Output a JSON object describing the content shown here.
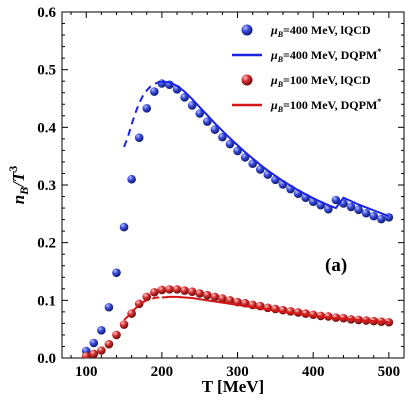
{
  "chart_data": {
    "type": "scatter",
    "xlabel": "T [MeV]",
    "ylabel_main": "n",
    "ylabel_sub": "B",
    "ylabel_rest": "/T",
    "ylabel_sup": "3",
    "annotation": "(a)",
    "xlim": [
      68,
      520
    ],
    "ylim": [
      0,
      0.6
    ],
    "xticks": [
      100,
      200,
      300,
      400,
      500
    ],
    "yticks": [
      0.0,
      0.1,
      0.2,
      0.3,
      0.4,
      0.5,
      0.6
    ],
    "xtick_labels": [
      "100",
      "200",
      "300",
      "400",
      "500"
    ],
    "ytick_labels": [
      "0.0",
      "0.1",
      "0.2",
      "0.3",
      "0.4",
      "0.5",
      "0.6"
    ],
    "legend_position": "top-right",
    "series": [
      {
        "name": "μB=400 MeV, lQCD",
        "legend_pre": "μ",
        "legend_sub": "B",
        "legend_post": "=400 MeV, lQCD",
        "kind": "markers",
        "color": "#2f3fd0",
        "x": [
          100,
          110,
          120,
          130,
          140,
          150,
          160,
          170,
          180,
          190,
          200,
          210,
          220,
          230,
          240,
          250,
          260,
          270,
          280,
          290,
          300,
          310,
          320,
          330,
          340,
          350,
          360,
          370,
          380,
          390,
          400,
          410,
          420,
          430,
          440,
          450,
          460,
          470,
          480,
          490,
          500
        ],
        "y": [
          0.012,
          0.026,
          0.048,
          0.088,
          0.148,
          0.227,
          0.31,
          0.382,
          0.433,
          0.462,
          0.476,
          0.474,
          0.466,
          0.452,
          0.438,
          0.424,
          0.41,
          0.396,
          0.383,
          0.371,
          0.359,
          0.348,
          0.337,
          0.327,
          0.318,
          0.309,
          0.301,
          0.293,
          0.285,
          0.278,
          0.271,
          0.265,
          0.258,
          0.274,
          0.268,
          0.262,
          0.257,
          0.251,
          0.246,
          0.241,
          0.244
        ]
      },
      {
        "name": "μB=400 MeV, DQPM*",
        "legend_pre": "μ",
        "legend_sub": "B",
        "legend_post": "=400 MeV, DQPM",
        "legend_sup": "*",
        "kind": "line",
        "color": "#1a22e6",
        "dashed_x": [
          150,
          155,
          160,
          165,
          170,
          175,
          180,
          185,
          190,
          195,
          200
        ],
        "dashed_y": [
          0.366,
          0.383,
          0.405,
          0.425,
          0.442,
          0.455,
          0.464,
          0.471,
          0.475,
          0.478,
          0.479
        ],
        "x": [
          200,
          210,
          220,
          230,
          240,
          250,
          260,
          270,
          280,
          290,
          300,
          310,
          320,
          330,
          340,
          350,
          360,
          370,
          380,
          390,
          400,
          410,
          420,
          430,
          440,
          450,
          460,
          470,
          480,
          490,
          500
        ],
        "y": [
          0.479,
          0.478,
          0.472,
          0.462,
          0.449,
          0.435,
          0.421,
          0.407,
          0.394,
          0.381,
          0.369,
          0.357,
          0.346,
          0.335,
          0.325,
          0.316,
          0.307,
          0.299,
          0.291,
          0.284,
          0.277,
          0.271,
          0.265,
          0.26,
          0.278,
          0.272,
          0.266,
          0.261,
          0.256,
          0.251,
          0.246
        ]
      },
      {
        "name": "μB=100 MeV, lQCD",
        "legend_pre": "μ",
        "legend_sub": "B",
        "legend_post": "=100 MeV, lQCD",
        "kind": "markers",
        "color": "#d42a2a",
        "x": [
          100,
          110,
          120,
          130,
          140,
          150,
          160,
          170,
          180,
          190,
          200,
          210,
          220,
          230,
          240,
          250,
          260,
          270,
          280,
          290,
          300,
          310,
          320,
          330,
          340,
          350,
          360,
          370,
          380,
          390,
          400,
          410,
          420,
          430,
          440,
          450,
          460,
          470,
          480,
          490,
          500
        ],
        "y": [
          0.003,
          0.007,
          0.013,
          0.024,
          0.04,
          0.058,
          0.077,
          0.094,
          0.106,
          0.114,
          0.118,
          0.119,
          0.119,
          0.117,
          0.115,
          0.112,
          0.109,
          0.106,
          0.103,
          0.1,
          0.097,
          0.095,
          0.092,
          0.09,
          0.087,
          0.085,
          0.083,
          0.081,
          0.079,
          0.077,
          0.075,
          0.073,
          0.072,
          0.07,
          0.069,
          0.067,
          0.066,
          0.065,
          0.064,
          0.063,
          0.062
        ]
      },
      {
        "name": "μB=100 MeV, DQPM*",
        "legend_pre": "μ",
        "legend_sub": "B",
        "legend_post": "=100 MeV, DQPM",
        "legend_sup": "*",
        "kind": "line",
        "color": "#d41616",
        "dashed_x": [
          150,
          155,
          160,
          165,
          170,
          175,
          180,
          185,
          190,
          195,
          200
        ],
        "dashed_y": [
          0.066,
          0.072,
          0.079,
          0.086,
          0.092,
          0.097,
          0.1,
          0.102,
          0.104,
          0.105,
          0.105
        ],
        "x": [
          200,
          210,
          220,
          230,
          240,
          250,
          260,
          270,
          280,
          290,
          300,
          310,
          320,
          330,
          340,
          350,
          360,
          370,
          380,
          390,
          400,
          410,
          420,
          430,
          440,
          450,
          460,
          470,
          480,
          490,
          500
        ],
        "y": [
          0.105,
          0.106,
          0.106,
          0.105,
          0.104,
          0.102,
          0.1,
          0.098,
          0.096,
          0.094,
          0.092,
          0.09,
          0.088,
          0.086,
          0.084,
          0.082,
          0.08,
          0.078,
          0.077,
          0.075,
          0.073,
          0.072,
          0.07,
          0.069,
          0.068,
          0.067,
          0.066,
          0.065,
          0.064,
          0.063,
          0.062
        ]
      }
    ]
  }
}
